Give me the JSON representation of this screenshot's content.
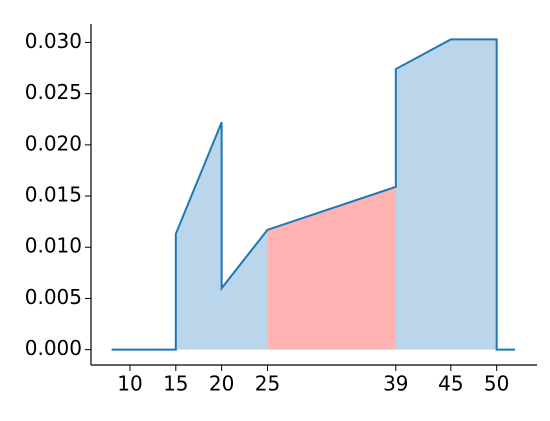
{
  "chart_data": {
    "type": "area",
    "x": [
      8,
      15,
      15,
      20,
      20,
      25,
      39,
      39,
      45,
      50,
      50,
      52
    ],
    "series": [
      {
        "color": "#1f77b4",
        "values": [
          0,
          0,
          0.0113,
          0.0222,
          0.006,
          0.0117,
          0.0159,
          0.0274,
          0.0303,
          0.0303,
          0,
          0
        ]
      }
    ],
    "fill_color": "#bbd6ea",
    "highlight": [
      25,
      39
    ],
    "highlight_color": "#ffb3b3",
    "xlim": [
      5.75,
      54.4
    ],
    "ylim": [
      -0.0015,
      0.0318
    ],
    "xticks": [
      10,
      15,
      20,
      25,
      39,
      45,
      50
    ],
    "yticks": [
      {
        "value": 0,
        "label": "0.000"
      },
      {
        "value": 0.005,
        "label": "0.005"
      },
      {
        "value": 0.01,
        "label": "0.010"
      },
      {
        "value": 0.015,
        "label": "0.015"
      },
      {
        "value": 0.02,
        "label": "0.020"
      },
      {
        "value": 0.025,
        "label": "0.025"
      },
      {
        "value": 0.03,
        "label": "0.030"
      }
    ],
    "grid": false
  }
}
